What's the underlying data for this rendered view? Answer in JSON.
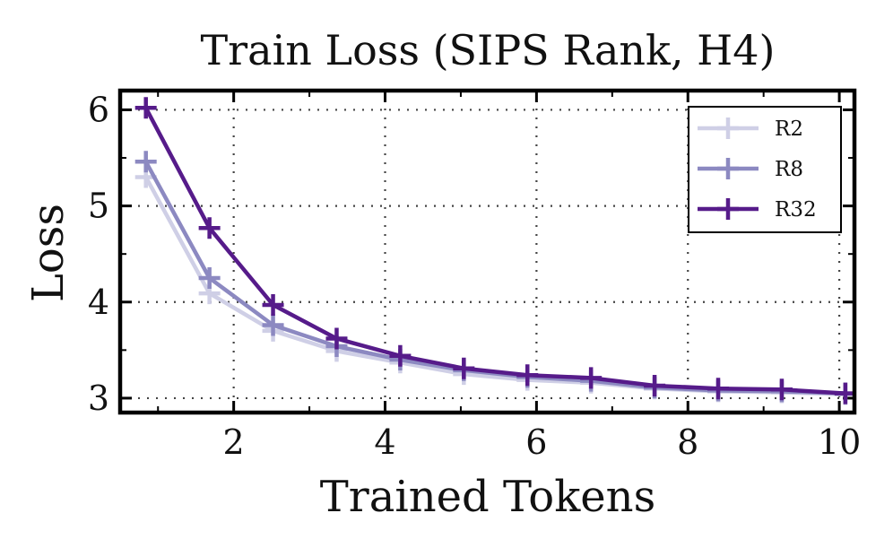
{
  "chart_data": {
    "type": "line",
    "title": "Train Loss (SIPS Rank, H4)",
    "xlabel": "Trained Tokens",
    "ylabel": "Loss",
    "xlim": [
      0.5,
      10.2
    ],
    "ylim": [
      2.85,
      6.2
    ],
    "xticks": [
      2,
      4,
      6,
      8,
      10
    ],
    "yticks": [
      3,
      4,
      5,
      6
    ],
    "grid": true,
    "legend_position": "top-right",
    "x": [
      0.84,
      1.68,
      2.52,
      3.36,
      4.2,
      5.04,
      5.88,
      6.72,
      7.56,
      8.4,
      9.24,
      10.08
    ],
    "series": [
      {
        "name": "R2",
        "color": "#cfcfe6",
        "values": [
          5.3,
          4.09,
          3.7,
          3.49,
          3.37,
          3.25,
          3.19,
          3.16,
          3.1,
          3.07,
          3.06,
          3.04
        ]
      },
      {
        "name": "R8",
        "color": "#8c89c1",
        "values": [
          5.46,
          4.25,
          3.76,
          3.54,
          3.4,
          3.29,
          3.22,
          3.18,
          3.11,
          3.08,
          3.07,
          3.05
        ]
      },
      {
        "name": "R32",
        "color": "#561b8a",
        "values": [
          6.02,
          4.77,
          3.97,
          3.62,
          3.44,
          3.31,
          3.24,
          3.21,
          3.13,
          3.1,
          3.09,
          3.05
        ]
      }
    ]
  }
}
